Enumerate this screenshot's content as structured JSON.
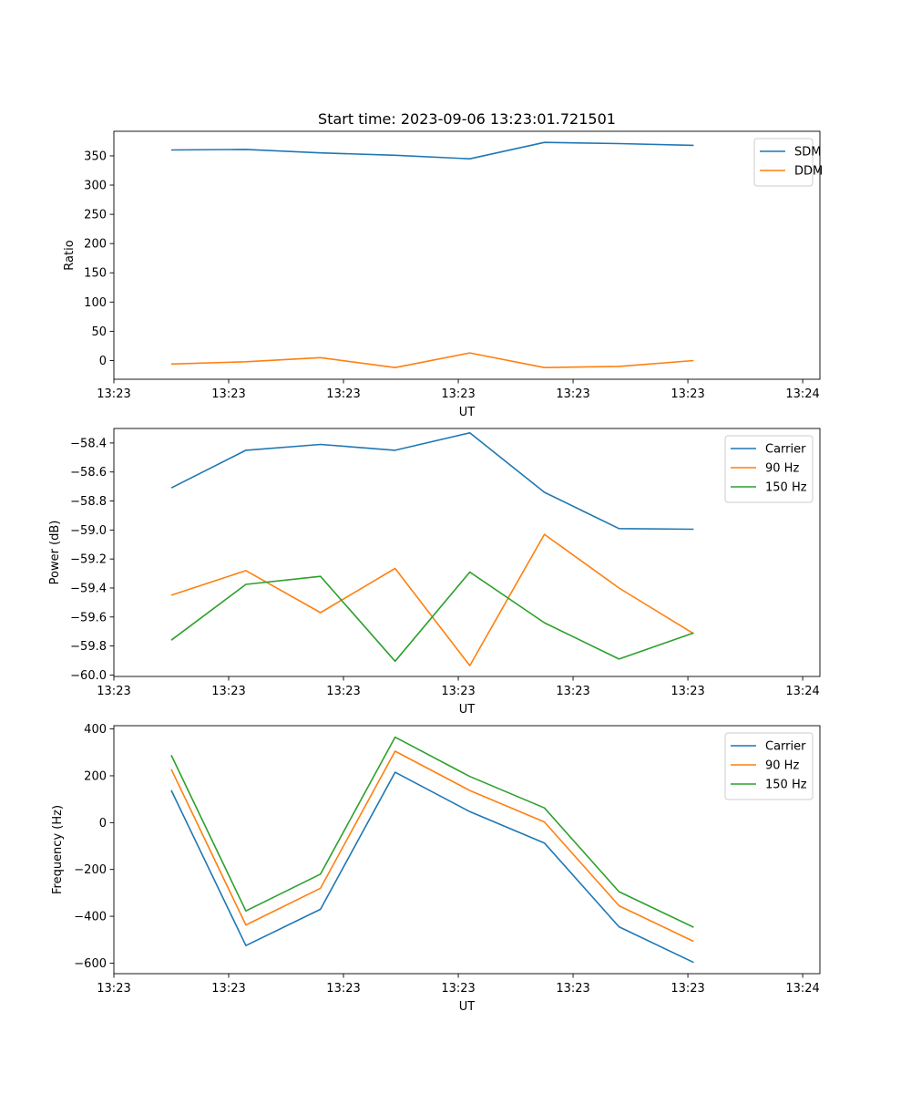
{
  "chart_data": [
    {
      "type": "line",
      "id": "ratio",
      "title": "Start time: 2023-09-06 13:23:01.721501",
      "xlabel": "UT",
      "ylabel": "Ratio",
      "xlim": [
        0,
        12.3
      ],
      "ylim": [
        -32,
        392
      ],
      "yticks": [
        0,
        50,
        100,
        150,
        200,
        250,
        300,
        350
      ],
      "ytick_labels": [
        "0",
        "50",
        "100",
        "150",
        "200",
        "250",
        "300",
        "350"
      ],
      "xticks": [
        0,
        2,
        4,
        6,
        8,
        10,
        12
      ],
      "xtick_labels": [
        "13:23",
        "13:23",
        "13:23",
        "13:23",
        "13:23",
        "13:23",
        "13:24"
      ],
      "x": [
        1,
        2.3,
        3.6,
        4.9,
        6.2,
        7.5,
        8.8,
        10.1
      ],
      "legend_position": "upper-right",
      "series": [
        {
          "name": "SDM",
          "color": "#1f77b4",
          "values": [
            360,
            361,
            355,
            351,
            345,
            373,
            371,
            368
          ]
        },
        {
          "name": "DDM",
          "color": "#ff7f0e",
          "values": [
            -6,
            -2,
            5,
            -12,
            13,
            -12,
            -10,
            0
          ]
        }
      ]
    },
    {
      "type": "line",
      "id": "power",
      "title": "",
      "xlabel": "UT",
      "ylabel": "Power (dB)",
      "xlim": [
        0,
        12.3
      ],
      "ylim": [
        -60.01,
        -58.3
      ],
      "yticks": [
        -60.0,
        -59.8,
        -59.6,
        -59.4,
        -59.2,
        -59.0,
        -58.8,
        -58.6,
        -58.4
      ],
      "ytick_labels": [
        "−60.0",
        "−59.8",
        "−59.6",
        "−59.4",
        "−59.2",
        "−59.0",
        "−58.8",
        "−58.6",
        "−58.4"
      ],
      "xticks": [
        0,
        2,
        4,
        6,
        8,
        10,
        12
      ],
      "xtick_labels": [
        "13:23",
        "13:23",
        "13:23",
        "13:23",
        "13:23",
        "13:23",
        "13:24"
      ],
      "x": [
        1,
        2.3,
        3.6,
        4.9,
        6.2,
        7.5,
        8.8,
        10.1
      ],
      "legend_position": "upper-right",
      "series": [
        {
          "name": "Carrier",
          "color": "#1f77b4",
          "values": [
            -58.71,
            -58.45,
            -58.41,
            -58.45,
            -58.33,
            -58.74,
            -58.99,
            -58.995
          ]
        },
        {
          "name": "90 Hz",
          "color": "#ff7f0e",
          "values": [
            -59.45,
            -59.28,
            -59.57,
            -59.265,
            -59.935,
            -59.03,
            -59.4,
            -59.715
          ]
        },
        {
          "name": "150 Hz",
          "color": "#2ca02c",
          "values": [
            -59.76,
            -59.375,
            -59.32,
            -59.905,
            -59.29,
            -59.64,
            -59.89,
            -59.71
          ]
        }
      ]
    },
    {
      "type": "line",
      "id": "frequency",
      "title": "",
      "xlabel": "UT",
      "ylabel": "Frequency (Hz)",
      "xlim": [
        0,
        12.3
      ],
      "ylim": [
        -645,
        414
      ],
      "yticks": [
        -600,
        -400,
        -200,
        0,
        200,
        400
      ],
      "ytick_labels": [
        "−600",
        "−400",
        "−200",
        "0",
        "200",
        "400"
      ],
      "xticks": [
        0,
        2,
        4,
        6,
        8,
        10,
        12
      ],
      "xtick_labels": [
        "13:23",
        "13:23",
        "13:23",
        "13:23",
        "13:23",
        "13:23",
        "13:24"
      ],
      "x": [
        1,
        2.3,
        3.6,
        4.9,
        6.2,
        7.5,
        8.8,
        10.1
      ],
      "legend_position": "upper-right",
      "series": [
        {
          "name": "Carrier",
          "color": "#1f77b4",
          "values": [
            138,
            -525,
            -370,
            215,
            47,
            -87,
            -445,
            -597
          ]
        },
        {
          "name": "90 Hz",
          "color": "#ff7f0e",
          "values": [
            228,
            -437,
            -280,
            305,
            137,
            3,
            -355,
            -507
          ]
        },
        {
          "name": "150 Hz",
          "color": "#2ca02c",
          "values": [
            288,
            -377,
            -220,
            365,
            197,
            63,
            -295,
            -447
          ]
        }
      ]
    }
  ]
}
